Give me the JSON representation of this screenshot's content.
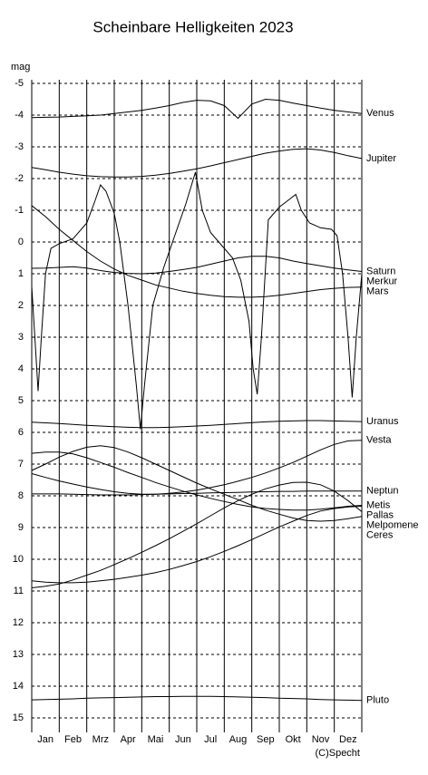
{
  "chart_data": {
    "type": "line",
    "title": "Scheinbare Helligkeiten 2023",
    "y_label": "mag",
    "annotation": "(C)Specht",
    "inverted": true,
    "grid": true,
    "color": "#000000",
    "xlim": [
      0,
      12
    ],
    "ylim": [
      -5,
      15
    ],
    "xticks": [
      {
        "value": 0.5,
        "label": "Jan"
      },
      {
        "value": 1.5,
        "label": "Feb"
      },
      {
        "value": 2.5,
        "label": "Mrz"
      },
      {
        "value": 3.5,
        "label": "Apr"
      },
      {
        "value": 4.5,
        "label": "Mai"
      },
      {
        "value": 5.5,
        "label": "Jun"
      },
      {
        "value": 6.5,
        "label": "Jul"
      },
      {
        "value": 7.5,
        "label": "Aug"
      },
      {
        "value": 8.5,
        "label": "Sep"
      },
      {
        "value": 9.5,
        "label": "Okt"
      },
      {
        "value": 10.5,
        "label": "Nov"
      },
      {
        "value": 11.5,
        "label": "Dez"
      }
    ],
    "yticks": [
      -5,
      -4,
      -3,
      -2,
      -1,
      0,
      1,
      2,
      3,
      4,
      5,
      6,
      7,
      8,
      9,
      10,
      11,
      12,
      13,
      14,
      15
    ],
    "x": [
      0,
      0.5,
      1,
      1.5,
      2,
      2.5,
      3,
      3.5,
      4,
      4.5,
      5,
      5.5,
      6,
      6.5,
      7,
      7.5,
      8,
      8.5,
      9,
      9.5,
      10,
      10.5,
      11,
      11.5,
      12
    ],
    "series": [
      {
        "name": "Venus",
        "color": "#000000",
        "values": [
          -3.92,
          -3.93,
          -3.94,
          -3.96,
          -3.98,
          -4.0,
          -4.05,
          -4.1,
          -4.15,
          -4.22,
          -4.3,
          -4.4,
          -4.47,
          -4.45,
          -4.3,
          -3.9,
          -4.35,
          -4.5,
          -4.47,
          -4.38,
          -4.3,
          -4.22,
          -4.15,
          -4.1,
          -4.05
        ]
      },
      {
        "name": "Jupiter",
        "color": "#000000",
        "values": [
          -2.35,
          -2.28,
          -2.2,
          -2.14,
          -2.09,
          -2.06,
          -2.05,
          -2.05,
          -2.07,
          -2.11,
          -2.16,
          -2.23,
          -2.31,
          -2.4,
          -2.5,
          -2.6,
          -2.7,
          -2.8,
          -2.87,
          -2.92,
          -2.94,
          -2.9,
          -2.82,
          -2.72,
          -2.63
        ]
      },
      {
        "name": "Saturn",
        "color": "#000000",
        "values": [
          0.83,
          0.82,
          0.8,
          0.78,
          0.82,
          0.9,
          0.96,
          0.99,
          1.0,
          0.98,
          0.93,
          0.87,
          0.8,
          0.7,
          0.6,
          0.5,
          0.45,
          0.45,
          0.5,
          0.6,
          0.68,
          0.75,
          0.82,
          0.88,
          0.93
        ]
      },
      {
        "name": "Merkur",
        "color": "#000000",
        "x": [
          0,
          0.15,
          0.23,
          0.35,
          0.5,
          0.7,
          1.0,
          1.5,
          2.0,
          2.3,
          2.5,
          2.7,
          3.0,
          3.2,
          3.5,
          3.8,
          3.95,
          4.1,
          4.4,
          4.8,
          5.2,
          5.6,
          5.95,
          6.2,
          6.5,
          6.9,
          7.3,
          7.6,
          7.9,
          8.05,
          8.2,
          8.35,
          8.6,
          9.0,
          9.3,
          9.6,
          9.8,
          10.1,
          10.5,
          10.9,
          11.1,
          11.3,
          11.5,
          11.65,
          11.8,
          12.0
        ],
        "values": [
          1.4,
          3.5,
          4.7,
          3.0,
          1.0,
          0.2,
          0.05,
          -0.1,
          -0.6,
          -1.3,
          -1.8,
          -1.6,
          -0.9,
          0.0,
          2.0,
          4.5,
          5.9,
          4.5,
          2.0,
          0.8,
          -0.2,
          -1.2,
          -2.2,
          -1.0,
          -0.3,
          0.1,
          0.5,
          1.2,
          2.5,
          4.0,
          4.8,
          3.0,
          -0.7,
          -1.1,
          -1.3,
          -1.5,
          -1.0,
          -0.6,
          -0.45,
          -0.4,
          -0.2,
          1.0,
          3.0,
          4.9,
          3.0,
          1.0
        ]
      },
      {
        "name": "Mars",
        "color": "#000000",
        "values": [
          -1.15,
          -0.8,
          -0.4,
          -0.05,
          0.3,
          0.6,
          0.85,
          1.05,
          1.2,
          1.35,
          1.45,
          1.55,
          1.62,
          1.68,
          1.72,
          1.74,
          1.74,
          1.72,
          1.68,
          1.62,
          1.56,
          1.5,
          1.46,
          1.43,
          1.42
        ]
      },
      {
        "name": "Uranus",
        "color": "#000000",
        "values": [
          5.68,
          5.7,
          5.72,
          5.75,
          5.78,
          5.8,
          5.82,
          5.84,
          5.85,
          5.85,
          5.84,
          5.82,
          5.8,
          5.78,
          5.75,
          5.72,
          5.69,
          5.67,
          5.65,
          5.64,
          5.63,
          5.63,
          5.64,
          5.65,
          5.66
        ]
      },
      {
        "name": "Vesta",
        "color": "#000000",
        "values": [
          7.3,
          7.42,
          7.53,
          7.63,
          7.72,
          7.8,
          7.87,
          7.92,
          7.95,
          7.95,
          7.92,
          7.88,
          7.82,
          7.74,
          7.65,
          7.54,
          7.42,
          7.28,
          7.12,
          6.95,
          6.75,
          6.55,
          6.38,
          6.27,
          6.25
        ]
      },
      {
        "name": "Neptun",
        "color": "#000000",
        "values": [
          7.94,
          7.94,
          7.94,
          7.95,
          7.96,
          7.97,
          7.97,
          7.97,
          7.96,
          7.95,
          7.94,
          7.93,
          7.92,
          7.91,
          7.9,
          7.89,
          7.88,
          7.87,
          7.86,
          7.86,
          7.85,
          7.85,
          7.85,
          7.85,
          7.85
        ]
      },
      {
        "name": "Metis",
        "color": "#000000",
        "values": [
          6.66,
          6.62,
          6.62,
          6.68,
          6.8,
          6.95,
          7.1,
          7.27,
          7.42,
          7.58,
          7.72,
          7.85,
          7.97,
          8.08,
          8.18,
          8.27,
          8.35,
          8.4,
          8.43,
          8.45,
          8.45,
          8.42,
          8.38,
          8.33,
          8.3
        ]
      },
      {
        "name": "Ceres",
        "color": "#000000",
        "values": [
          7.2,
          7.0,
          6.78,
          6.6,
          6.47,
          6.42,
          6.48,
          6.62,
          6.8,
          7.0,
          7.2,
          7.4,
          7.6,
          7.78,
          7.95,
          8.12,
          8.3,
          8.45,
          8.58,
          8.7,
          8.78,
          8.8,
          8.78,
          8.72,
          8.65
        ]
      },
      {
        "name": "Melpomene",
        "color": "#000000",
        "values": [
          10.9,
          10.85,
          10.78,
          10.65,
          10.5,
          10.35,
          10.17,
          9.98,
          9.78,
          9.57,
          9.35,
          9.12,
          8.88,
          8.63,
          8.38,
          8.15,
          7.95,
          7.78,
          7.66,
          7.58,
          7.57,
          7.65,
          7.85,
          8.15,
          8.5
        ]
      },
      {
        "name": "Pallas",
        "color": "#000000",
        "values": [
          10.68,
          10.72,
          10.74,
          10.74,
          10.72,
          10.68,
          10.63,
          10.57,
          10.5,
          10.42,
          10.32,
          10.2,
          10.07,
          9.92,
          9.75,
          9.57,
          9.38,
          9.18,
          8.98,
          8.8,
          8.62,
          8.48,
          8.4,
          8.35,
          8.33
        ]
      },
      {
        "name": "Pluto",
        "color": "#000000",
        "values": [
          14.43,
          14.42,
          14.41,
          14.4,
          14.38,
          14.37,
          14.36,
          14.35,
          14.34,
          14.33,
          14.33,
          14.32,
          14.32,
          14.32,
          14.33,
          14.34,
          14.35,
          14.36,
          14.38,
          14.39,
          14.4,
          14.42,
          14.43,
          14.44,
          14.45
        ]
      }
    ]
  }
}
